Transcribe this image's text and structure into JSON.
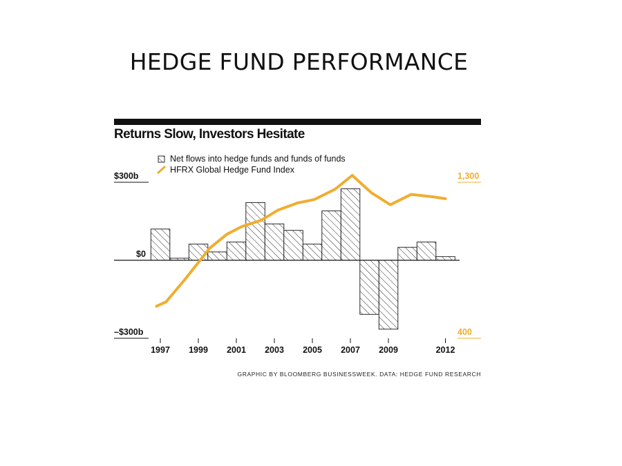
{
  "slide": {
    "title": "HEDGE FUND PERFORMANCE"
  },
  "chart_data": {
    "type": "bar+line",
    "title": "Returns Slow, Investors Hesitate",
    "legend": [
      {
        "label": "Net flows into hedge funds and funds of funds",
        "symbol": "hatched-box-icon"
      },
      {
        "label": "HFRX Global Hedge Fund Index",
        "symbol": "orange-line-icon"
      }
    ],
    "left_axis": {
      "labels": [
        "$300b",
        "$0",
        "–$300b"
      ],
      "values": [
        300,
        0,
        -300
      ],
      "range": [
        -300,
        300
      ]
    },
    "right_axis": {
      "labels": [
        "1,300",
        "400"
      ],
      "values": [
        1300,
        400
      ],
      "range": [
        400,
        1300
      ]
    },
    "x_tick_labels": [
      "1997",
      "1999",
      "2001",
      "2003",
      "2005",
      "2007",
      "2009",
      "2012"
    ],
    "x_tick_values": [
      1997,
      1999,
      2001,
      2003,
      2005,
      2007,
      2009,
      2012
    ],
    "bars": {
      "name": "Net flows into hedge funds and funds of funds",
      "years": [
        1997,
        1998,
        1999,
        2000,
        2001,
        2002,
        2003,
        2004,
        2005,
        2006,
        2007,
        2008,
        2009,
        2010,
        2011,
        2012
      ],
      "values": [
        120,
        8,
        62,
        32,
        70,
        222,
        140,
        115,
        62,
        190,
        275,
        -208,
        -265,
        50,
        70,
        14
      ]
    },
    "line": {
      "name": "HFRX Global Hedge Fund Index",
      "years": [
        1996.8,
        1997.3,
        1998.3,
        1999.6,
        2000.5,
        2001.3,
        2002.3,
        2003.2,
        2004.2,
        2005.1,
        2006.2,
        2007.1,
        2008.1,
        2009.1,
        2010.2,
        2011.4,
        2012.0
      ],
      "values": [
        585,
        610,
        740,
        920,
        1000,
        1045,
        1080,
        1140,
        1180,
        1200,
        1260,
        1340,
        1240,
        1170,
        1230,
        1215,
        1205
      ]
    },
    "colors": {
      "line": "#f0ad2f",
      "bar_stroke": "#111111",
      "hatch": "#111111",
      "rule": "#111111"
    }
  },
  "source": "GRAPHIC BY BLOOMBERG BUSINESSWEEK. DATA: HEDGE FUND RESEARCH"
}
